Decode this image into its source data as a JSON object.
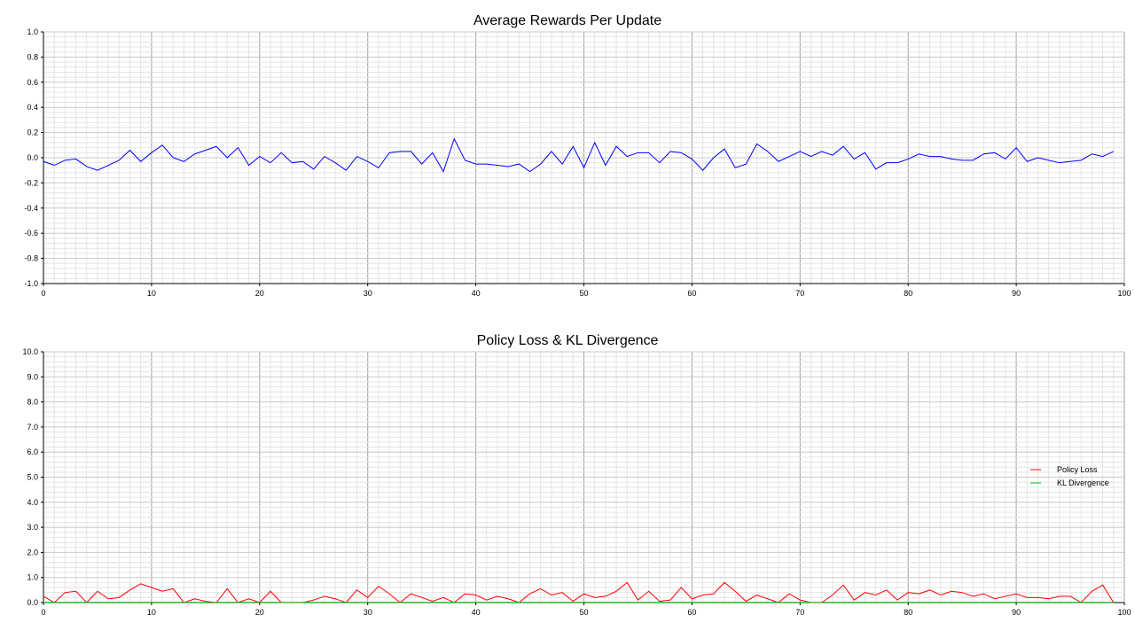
{
  "chart_data": [
    {
      "type": "line",
      "title": "Average Rewards Per Update",
      "xlim": [
        0,
        100
      ],
      "ylim": [
        -1.0,
        1.0
      ],
      "x_ticks": [
        0,
        10,
        20,
        30,
        40,
        50,
        60,
        70,
        80,
        90,
        100
      ],
      "y_ticks": [
        "-1.0",
        "-0.8",
        "-0.6",
        "-0.4",
        "-0.2",
        "0.0",
        "0.2",
        "0.4",
        "0.6",
        "0.8",
        "1.0"
      ],
      "grid": true,
      "series": [
        {
          "color": "#0000ff",
          "values": [
            -0.03,
            -0.06,
            -0.02,
            -0.01,
            -0.07,
            -0.1,
            -0.06,
            -0.02,
            0.06,
            -0.03,
            0.04,
            0.1,
            0.0,
            -0.03,
            0.03,
            0.06,
            0.09,
            0.0,
            0.08,
            -0.06,
            0.01,
            -0.04,
            0.04,
            -0.04,
            -0.03,
            -0.09,
            0.01,
            -0.04,
            -0.1,
            0.01,
            -0.03,
            -0.08,
            0.04,
            0.05,
            0.05,
            -0.05,
            0.04,
            -0.11,
            0.15,
            -0.02,
            -0.05,
            -0.05,
            -0.06,
            -0.07,
            -0.05,
            -0.11,
            -0.05,
            0.05,
            -0.05,
            0.09,
            -0.08,
            0.12,
            -0.06,
            0.09,
            0.01,
            0.04,
            0.04,
            -0.04,
            0.05,
            0.04,
            -0.01,
            -0.1,
            0.0,
            0.07,
            -0.08,
            -0.05,
            0.11,
            0.05,
            -0.03,
            0.01,
            0.05,
            0.01,
            0.05,
            0.02,
            0.09,
            -0.01,
            0.04,
            -0.09,
            -0.04,
            -0.04,
            -0.01,
            0.03,
            0.01,
            0.01,
            -0.01,
            -0.02,
            -0.02,
            0.03,
            0.04,
            -0.01,
            0.08,
            -0.03,
            0.0,
            -0.02,
            -0.04,
            -0.03,
            -0.02,
            0.03,
            0.01,
            0.05
          ]
        }
      ]
    },
    {
      "type": "line",
      "title": "Policy Loss & KL Divergence",
      "xlim": [
        0,
        100
      ],
      "ylim": [
        0.0,
        10.0
      ],
      "x_ticks": [
        0,
        10,
        20,
        30,
        40,
        50,
        60,
        70,
        80,
        90,
        100
      ],
      "y_ticks": [
        "0.0",
        "1.0",
        "2.0",
        "3.0",
        "4.0",
        "5.0",
        "6.0",
        "7.0",
        "8.0",
        "9.0",
        "10.0"
      ],
      "grid": true,
      "legend_position": "right",
      "series": [
        {
          "name": "Policy Loss",
          "color": "#ff0000",
          "values": [
            0.25,
            0.0,
            0.4,
            0.45,
            0.0,
            0.45,
            0.15,
            0.2,
            0.5,
            0.75,
            0.6,
            0.45,
            0.55,
            0.0,
            0.15,
            0.05,
            0.0,
            0.55,
            0.0,
            0.15,
            0.0,
            0.45,
            0.0,
            0.0,
            0.0,
            0.1,
            0.25,
            0.15,
            0.0,
            0.5,
            0.2,
            0.65,
            0.35,
            0.0,
            0.35,
            0.2,
            0.05,
            0.2,
            0.0,
            0.35,
            0.3,
            0.1,
            0.25,
            0.15,
            0.0,
            0.35,
            0.55,
            0.3,
            0.4,
            0.05,
            0.35,
            0.2,
            0.25,
            0.45,
            0.8,
            0.1,
            0.45,
            0.05,
            0.1,
            0.6,
            0.15,
            0.3,
            0.35,
            0.8,
            0.45,
            0.05,
            0.3,
            0.15,
            0.0,
            0.35,
            0.1,
            0.0,
            0.0,
            0.3,
            0.7,
            0.1,
            0.4,
            0.3,
            0.5,
            0.1,
            0.4,
            0.35,
            0.5,
            0.3,
            0.45,
            0.4,
            0.25,
            0.35,
            0.15,
            0.25,
            0.35,
            0.2,
            0.2,
            0.15,
            0.25,
            0.25,
            0.0,
            0.45,
            0.7,
            0.0
          ]
        },
        {
          "name": "KL Divergence",
          "color": "#00cc00",
          "values": [
            0.01,
            0.01,
            0.01,
            0.01,
            0.01,
            0.01,
            0.01,
            0.01,
            0.01,
            0.01,
            0.01,
            0.01,
            0.01,
            0.01,
            0.01,
            0.01,
            0.01,
            0.01,
            0.01,
            0.01,
            0.01,
            0.01,
            0.01,
            0.01,
            0.01,
            0.01,
            0.01,
            0.01,
            0.01,
            0.01,
            0.01,
            0.01,
            0.01,
            0.01,
            0.01,
            0.01,
            0.01,
            0.01,
            0.01,
            0.01,
            0.01,
            0.01,
            0.01,
            0.01,
            0.01,
            0.01,
            0.01,
            0.01,
            0.01,
            0.01,
            0.01,
            0.01,
            0.01,
            0.01,
            0.01,
            0.01,
            0.01,
            0.01,
            0.01,
            0.01,
            0.01,
            0.01,
            0.01,
            0.01,
            0.01,
            0.01,
            0.01,
            0.01,
            0.01,
            0.01,
            0.01,
            0.01,
            0.01,
            0.01,
            0.01,
            0.01,
            0.01,
            0.01,
            0.01,
            0.01,
            0.01,
            0.01,
            0.01,
            0.01,
            0.01,
            0.01,
            0.01,
            0.01,
            0.01,
            0.01,
            0.01,
            0.01,
            0.01,
            0.01,
            0.01,
            0.01,
            0.01,
            0.01,
            0.01,
            0.01
          ]
        }
      ]
    }
  ]
}
